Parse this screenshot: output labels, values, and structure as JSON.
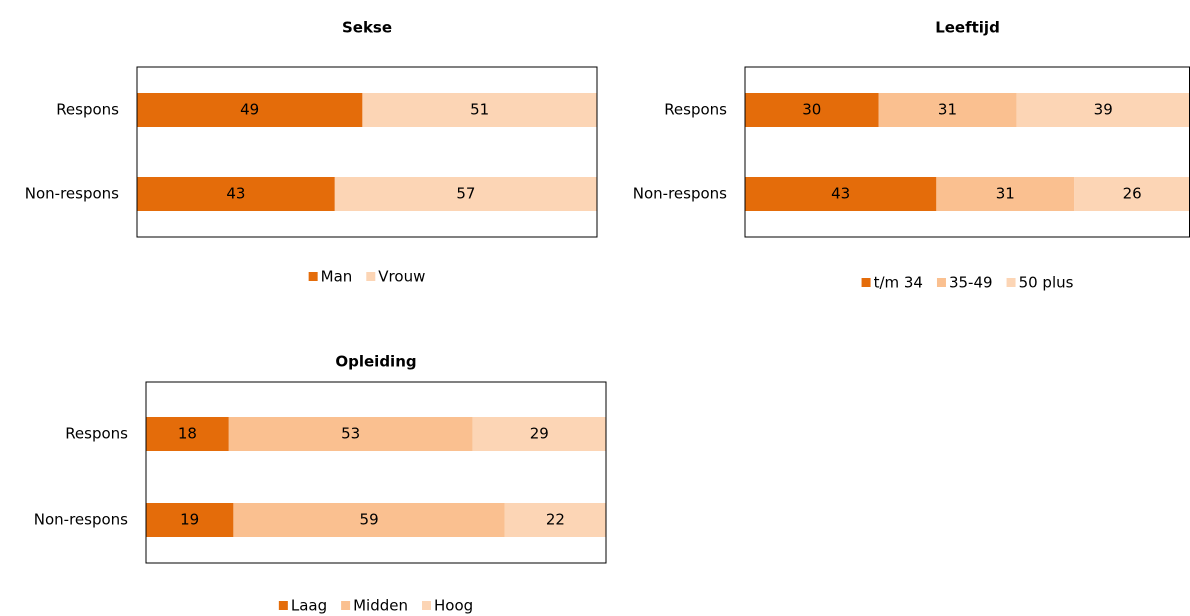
{
  "chart_data": [
    {
      "type": "bar",
      "stacked": true,
      "orientation": "horizontal",
      "title": "Sekse",
      "categories": [
        "Respons",
        "Non-respons"
      ],
      "xlim": [
        0,
        100
      ],
      "series": [
        {
          "name": "Man",
          "color": "#e46c0a",
          "values": [
            49,
            43
          ]
        },
        {
          "name": "Vrouw",
          "color": "#fcd5b5",
          "values": [
            51,
            57
          ]
        }
      ],
      "legend": "bottom"
    },
    {
      "type": "bar",
      "stacked": true,
      "orientation": "horizontal",
      "title": "Leeftijd",
      "categories": [
        "Respons",
        "Non-respons"
      ],
      "xlim": [
        0,
        100
      ],
      "series": [
        {
          "name": "t/m 34",
          "color": "#e46c0a",
          "values": [
            30,
            43
          ]
        },
        {
          "name": "35-49",
          "color": "#fac090",
          "values": [
            31,
            31
          ]
        },
        {
          "name": "50 plus",
          "color": "#fcd5b5",
          "values": [
            39,
            26
          ]
        }
      ],
      "legend": "bottom"
    },
    {
      "type": "bar",
      "stacked": true,
      "orientation": "horizontal",
      "title": "Opleiding",
      "categories": [
        "Respons",
        "Non-respons"
      ],
      "xlim": [
        0,
        100
      ],
      "series": [
        {
          "name": "Laag",
          "color": "#e46c0a",
          "values": [
            18,
            19
          ]
        },
        {
          "name": "Midden",
          "color": "#fac090",
          "values": [
            53,
            59
          ]
        },
        {
          "name": "Hoog",
          "color": "#fcd5b5",
          "values": [
            29,
            22
          ]
        }
      ],
      "legend": "bottom"
    }
  ]
}
